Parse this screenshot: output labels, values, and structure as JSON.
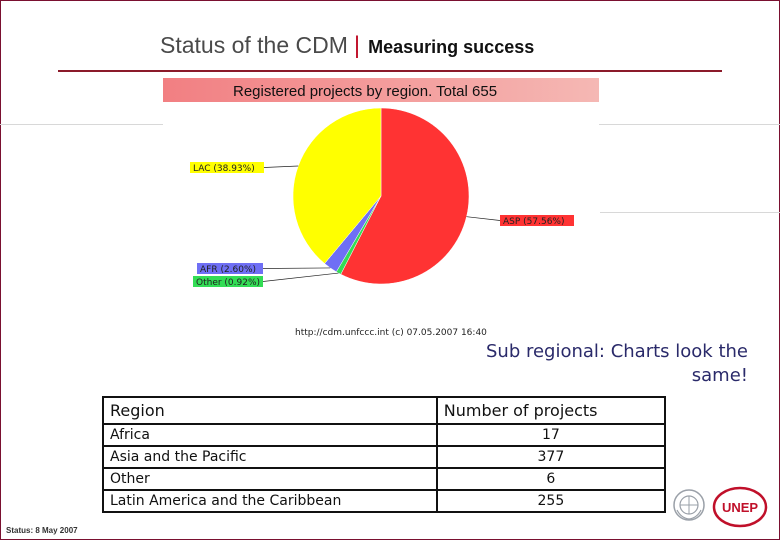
{
  "slide": {
    "title_main": "Status of the CDM",
    "title_separator": "|",
    "title_sub": "Measuring success",
    "note": "Sub regional: Charts look the same!",
    "status": "Status: 8 May 2007"
  },
  "colors": {
    "accent": "#c0102a",
    "title_rule": "#8b1a2a",
    "lac": "#ffff00",
    "asp": "#ff3333",
    "afr": "#6f6ff5",
    "other": "#33dd55"
  },
  "chart_data": {
    "type": "pie",
    "title": "Registered projects by region. Total 655",
    "source": "http://cdm.unfccc.int (c) 07.05.2007 16:40",
    "slices": [
      {
        "label": "ASP (57.56%)",
        "value": 57.56,
        "color": "#ff3333"
      },
      {
        "label": "Other (0.92%)",
        "value": 0.92,
        "color": "#33dd55"
      },
      {
        "label": "AFR (2.60%)",
        "value": 2.6,
        "color": "#6f6ff5"
      },
      {
        "label": "LAC (38.93%)",
        "value": 38.93,
        "color": "#ffff00"
      }
    ]
  },
  "table": {
    "header": [
      "Region",
      "Number of projects"
    ],
    "rows": [
      {
        "region": "Africa",
        "count": "17"
      },
      {
        "region": "Asia and the Pacific",
        "count": "377"
      },
      {
        "region": "Other",
        "count": "6"
      },
      {
        "region": "Latin America and the Caribbean",
        "count": "255"
      }
    ]
  },
  "logos": {
    "un_icon": "un-emblem-icon",
    "unep_icon": "unep-logo-icon",
    "unep_text": "UNEP"
  }
}
